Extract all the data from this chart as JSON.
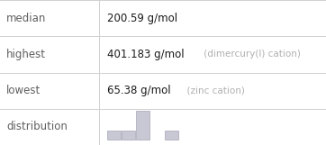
{
  "median_label": "median",
  "median_value": "200.59 g/mol",
  "highest_label": "highest",
  "highest_value": "401.183 g/mol",
  "highest_note": " (dimercury(I) cation)",
  "lowest_label": "lowest",
  "lowest_value": "65.38 g/mol",
  "lowest_note": "  (zinc cation)",
  "distribution_label": "distribution",
  "bar_heights": [
    1,
    1,
    3,
    0,
    1
  ],
  "bar_color": "#c8c8d4",
  "bar_edge_color": "#b0b0c0",
  "background_color": "#ffffff",
  "line_color": "#d0d0d0",
  "label_color": "#606060",
  "value_color": "#1a1a1a",
  "note_color": "#b0b0b0",
  "label_fontsize": 8.5,
  "value_fontsize": 8.5,
  "note_fontsize": 7.5,
  "col_split": 0.305,
  "figwidth": 3.62,
  "figheight": 1.61,
  "dpi": 100
}
